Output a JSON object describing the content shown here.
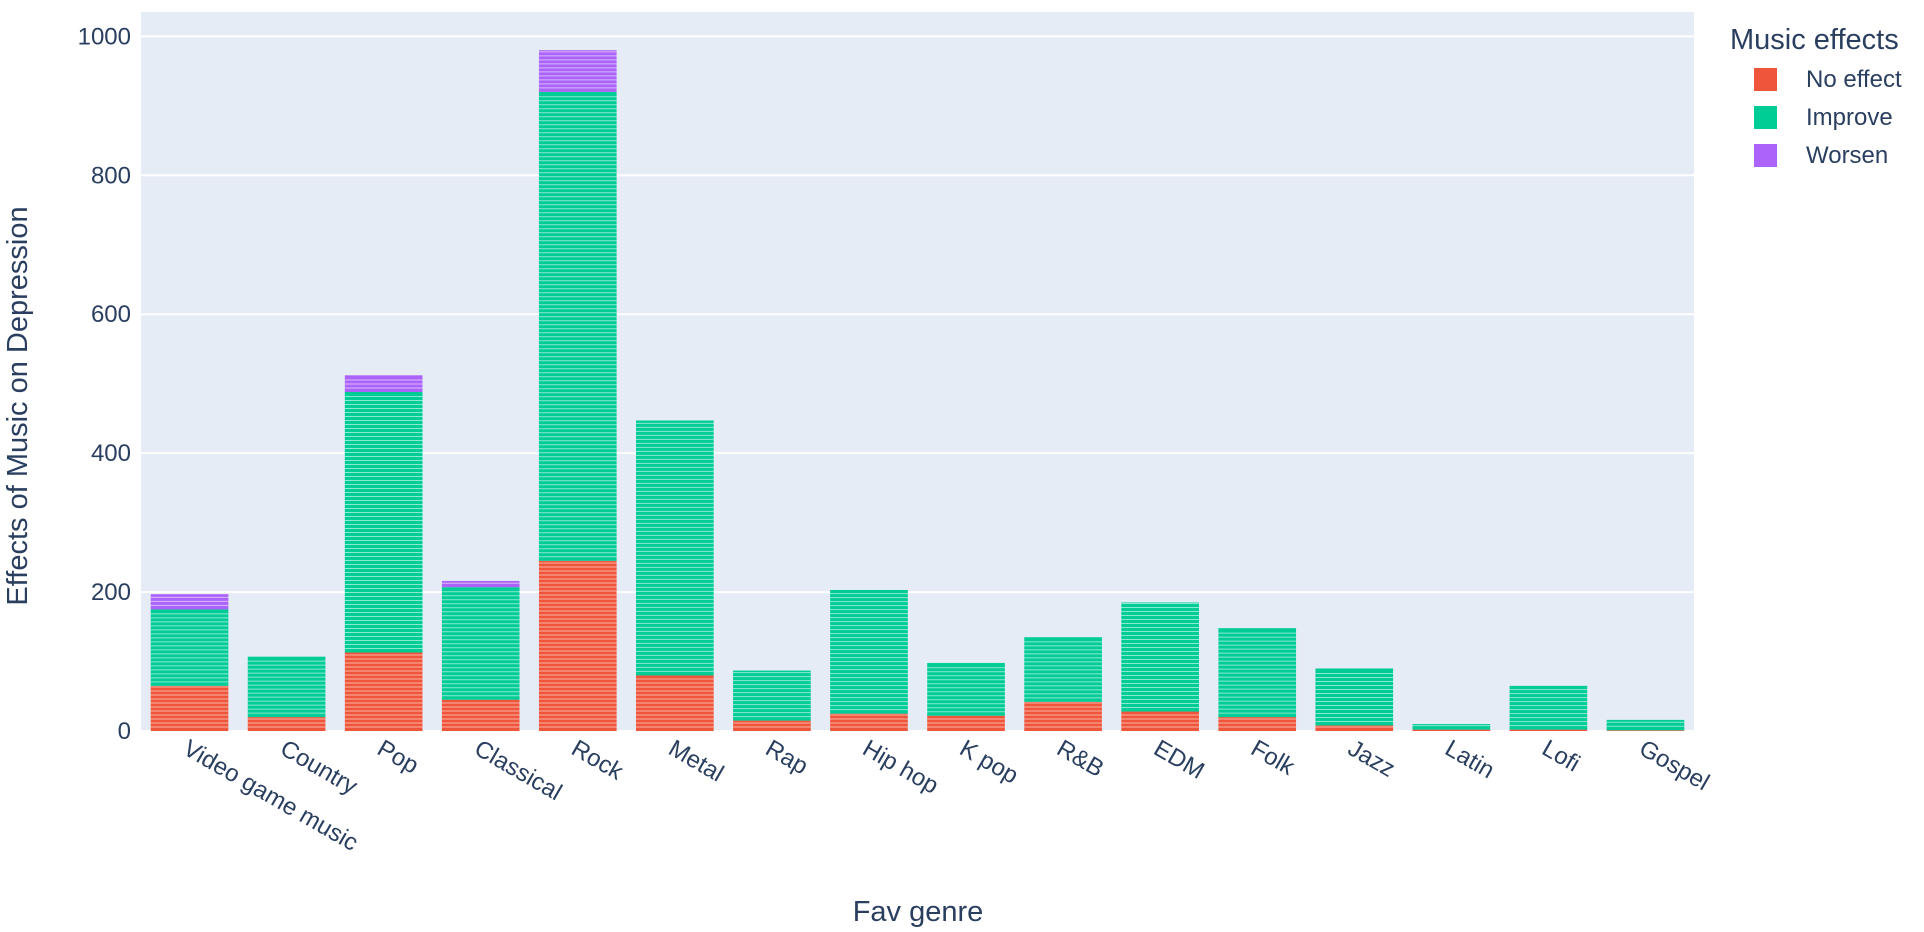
{
  "chart_data": {
    "type": "bar",
    "barmode": "stack",
    "categories": [
      "Video game music",
      "Country",
      "Pop",
      "Classical",
      "Rock",
      "Metal",
      "Rap",
      "Hip hop",
      "K pop",
      "R&B",
      "EDM",
      "Folk",
      "Jazz",
      "Latin",
      "Lofi",
      "Gospel"
    ],
    "series": [
      {
        "name": "No effect",
        "color": "#ef553b",
        "values": [
          65,
          20,
          113,
          45,
          245,
          80,
          15,
          25,
          22,
          42,
          28,
          20,
          8,
          2,
          2,
          1
        ]
      },
      {
        "name": "Improve",
        "color": "#00cc96",
        "values": [
          110,
          87,
          375,
          162,
          675,
          367,
          72,
          178,
          76,
          93,
          157,
          128,
          82,
          8,
          63,
          15
        ]
      },
      {
        "name": "Worsen",
        "color": "#ab63fa",
        "values": [
          22,
          0,
          24,
          9,
          60,
          0,
          0,
          0,
          0,
          0,
          0,
          0,
          0,
          0,
          0,
          0
        ]
      }
    ],
    "xlabel": "Fav genre",
    "ylabel": "Effects of Music on Depression",
    "ylim": [
      0,
      1035
    ],
    "yticks": [
      "0",
      "200",
      "400",
      "600",
      "800",
      "1000"
    ],
    "legend": {
      "title": "Music effects",
      "position": "top-right"
    },
    "grid": true,
    "plot_bgcolor": "#e5ecf6"
  }
}
